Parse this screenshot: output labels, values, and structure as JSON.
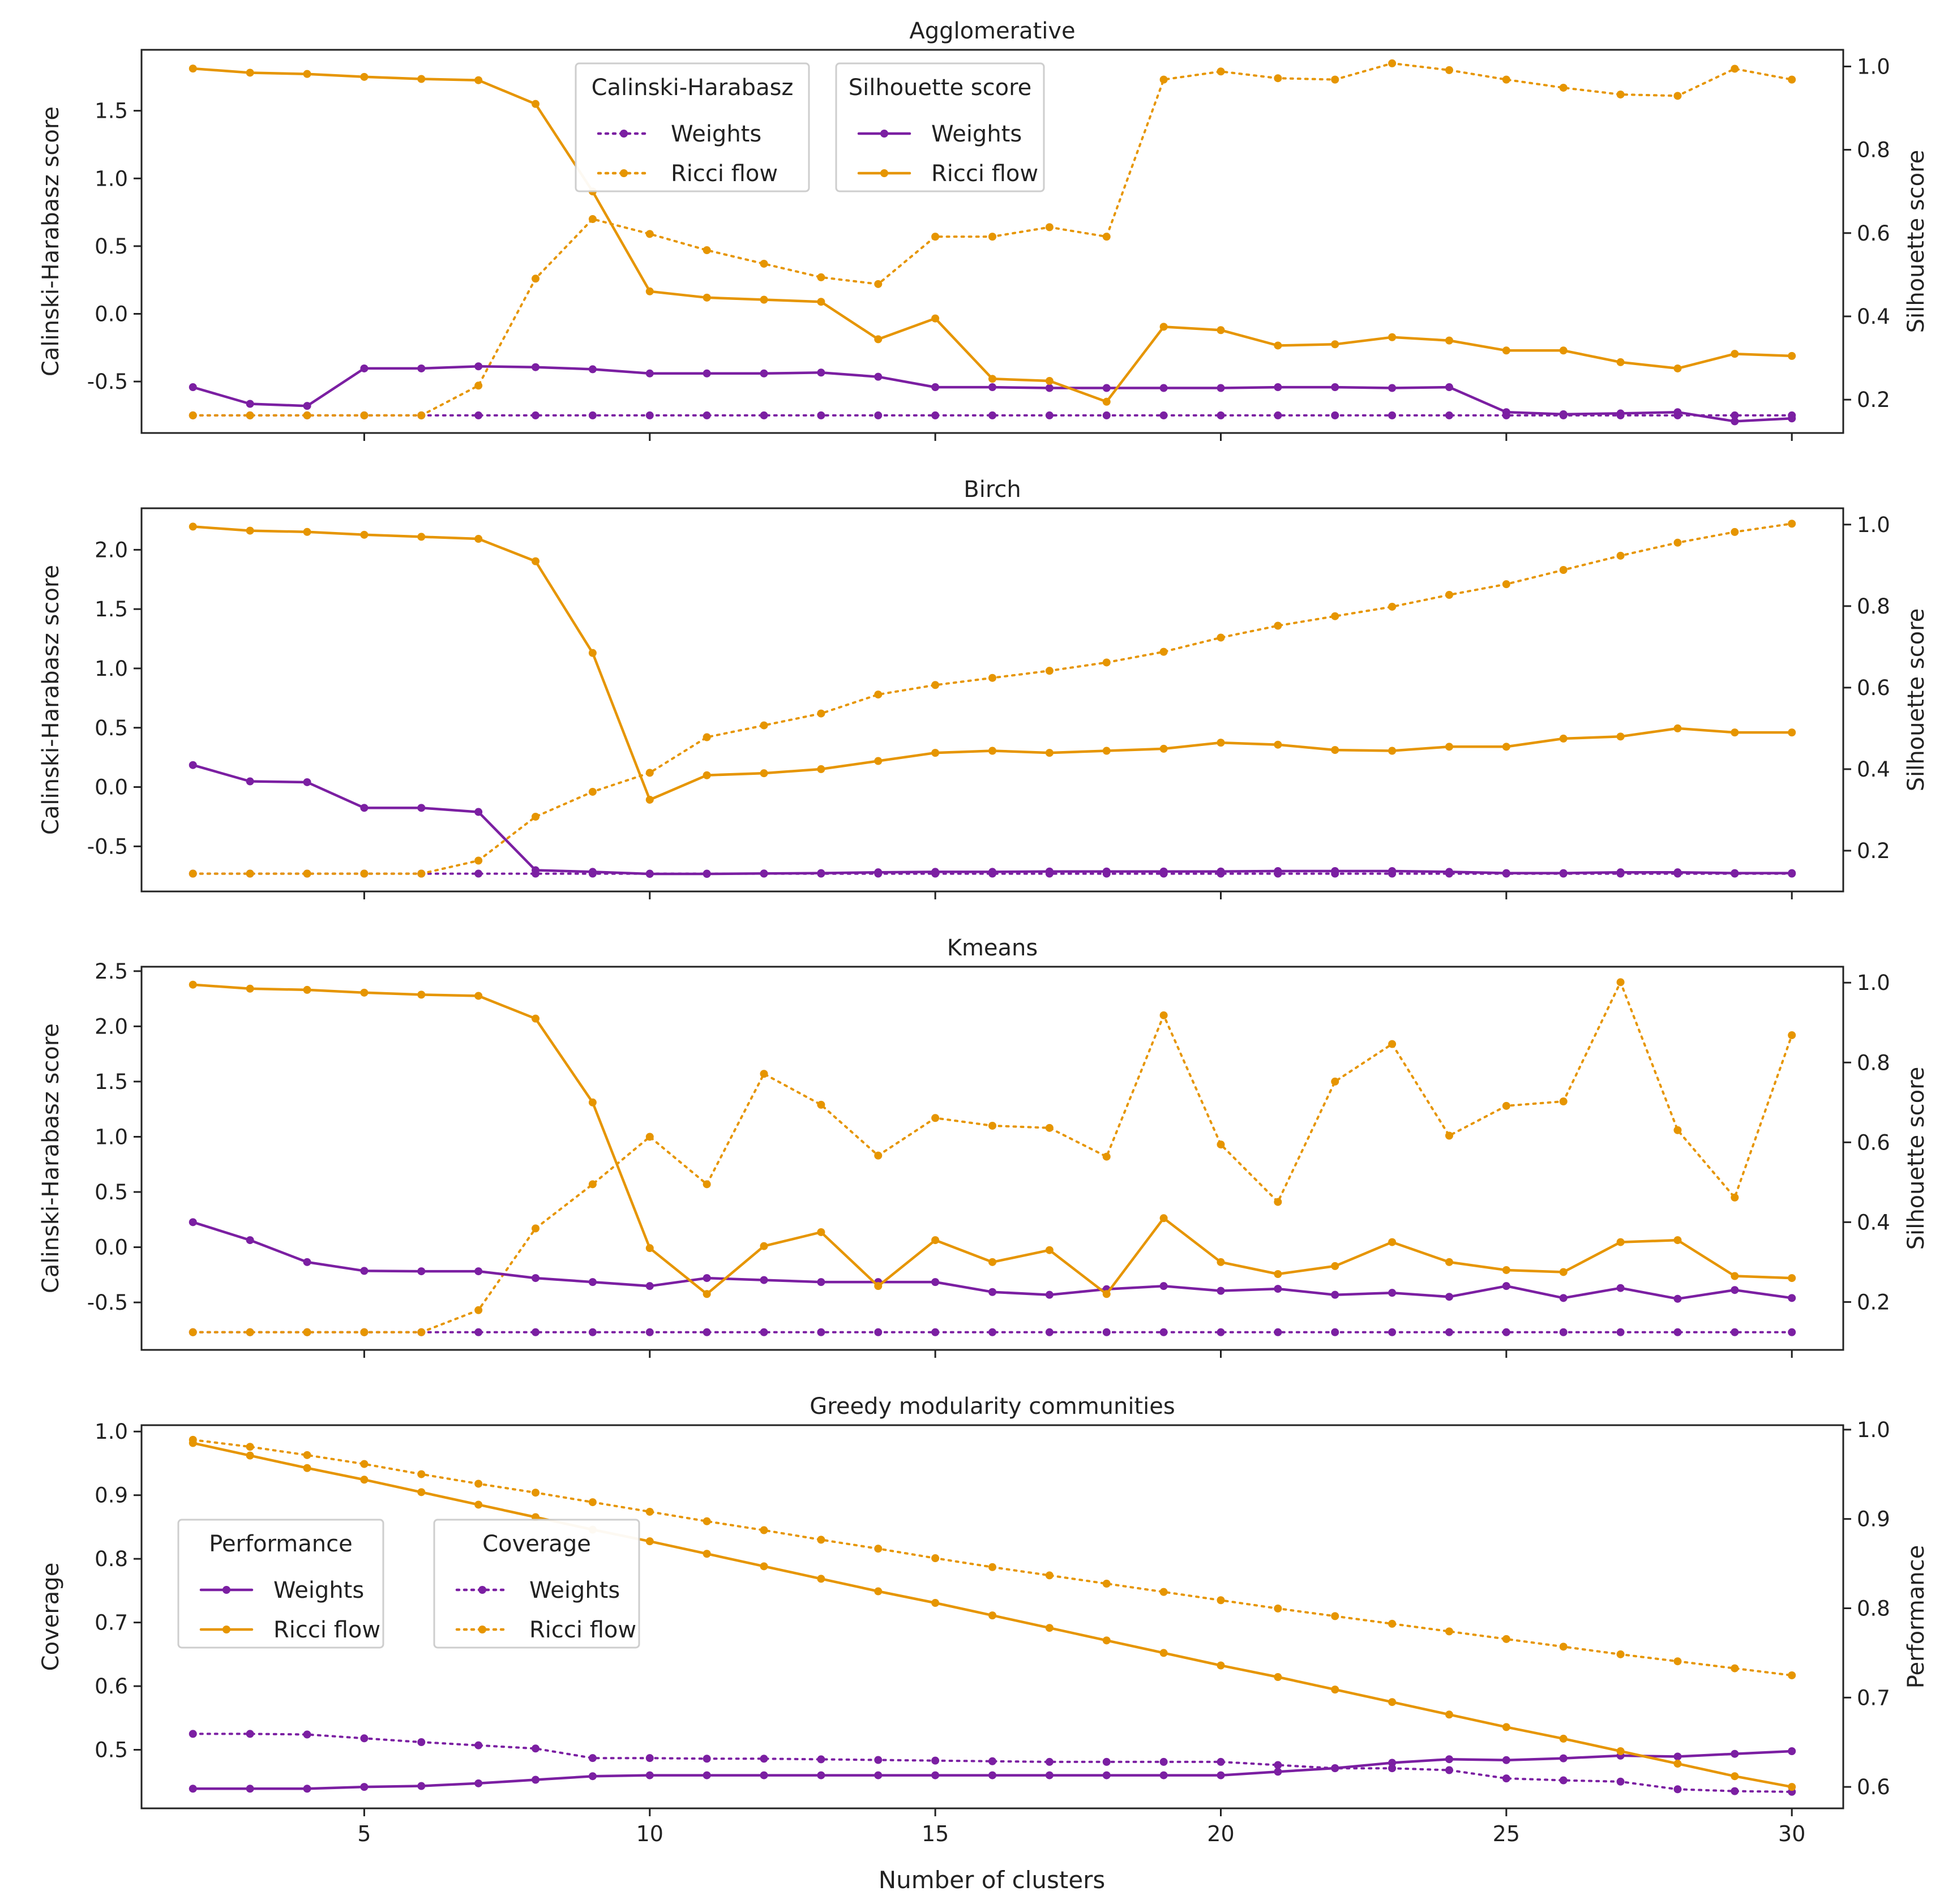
{
  "figure": {
    "xlabel": "Number of clusters"
  },
  "colors": {
    "weights": "#7B1FA2",
    "ricci": "#E69500",
    "axis": "#222222"
  },
  "chart_data": [
    {
      "type": "line",
      "title": "Agglomerative",
      "xlabel": "",
      "ylabel_left": "Calinski-Harabasz score",
      "ylabel_right": "Silhouette score",
      "x": [
        2,
        3,
        4,
        5,
        6,
        7,
        8,
        9,
        10,
        11,
        12,
        13,
        14,
        15,
        16,
        17,
        18,
        19,
        20,
        21,
        22,
        23,
        24,
        25,
        26,
        27,
        28,
        29,
        30
      ],
      "xlim": [
        1.1,
        30.9
      ],
      "xticks": [
        5,
        10,
        15,
        20,
        25,
        30
      ],
      "ylim_left": [
        -0.88,
        1.95
      ],
      "yticks_left": [
        -0.5,
        0.0,
        0.5,
        1.0,
        1.5
      ],
      "ylim_right": [
        0.12,
        1.04
      ],
      "yticks_right": [
        0.2,
        0.4,
        0.6,
        0.8,
        1.0
      ],
      "series": [
        {
          "name": "Weights",
          "group": "Calinski-Harabasz",
          "axis": "left",
          "style": "dotted",
          "color": "weights",
          "values": [
            -0.75,
            -0.75,
            -0.75,
            -0.75,
            -0.75,
            -0.75,
            -0.75,
            -0.75,
            -0.75,
            -0.75,
            -0.75,
            -0.75,
            -0.75,
            -0.75,
            -0.75,
            -0.75,
            -0.75,
            -0.75,
            -0.75,
            -0.75,
            -0.75,
            -0.75,
            -0.75,
            -0.75,
            -0.75,
            -0.75,
            -0.75,
            -0.75,
            -0.75
          ]
        },
        {
          "name": "Ricci flow",
          "group": "Calinski-Harabasz",
          "axis": "left",
          "style": "dotted",
          "color": "ricci",
          "values": [
            -0.75,
            -0.75,
            -0.75,
            -0.75,
            -0.75,
            -0.53,
            0.26,
            0.7,
            0.59,
            0.47,
            0.37,
            0.27,
            0.22,
            0.57,
            0.57,
            0.64,
            0.57,
            1.73,
            1.79,
            1.74,
            1.73,
            1.85,
            1.8,
            1.73,
            1.67,
            1.62,
            1.61,
            1.81,
            1.73
          ]
        },
        {
          "name": "Weights",
          "group": "Silhouette score",
          "axis": "right",
          "style": "solid",
          "color": "weights",
          "values": [
            0.23,
            0.19,
            0.185,
            0.275,
            0.275,
            0.28,
            0.278,
            0.273,
            0.263,
            0.263,
            0.263,
            0.265,
            0.255,
            0.23,
            0.23,
            0.228,
            0.228,
            0.228,
            0.228,
            0.23,
            0.23,
            0.228,
            0.23,
            0.17,
            0.165,
            0.167,
            0.17,
            0.148,
            0.155
          ]
        },
        {
          "name": "Ricci flow",
          "group": "Silhouette score",
          "axis": "right",
          "style": "solid",
          "color": "ricci",
          "values": [
            0.995,
            0.985,
            0.982,
            0.975,
            0.97,
            0.967,
            0.91,
            0.7,
            0.46,
            0.445,
            0.44,
            0.435,
            0.345,
            0.395,
            0.25,
            0.245,
            0.195,
            0.375,
            0.367,
            0.33,
            0.333,
            0.35,
            0.342,
            0.318,
            0.318,
            0.29,
            0.275,
            0.31,
            0.305
          ]
        }
      ],
      "legends": [
        {
          "title": "Calinski-Harabasz",
          "position": "top-center",
          "items": [
            {
              "label": "Weights",
              "color": "weights",
              "style": "dotted"
            },
            {
              "label": "Ricci flow",
              "color": "ricci",
              "style": "dotted"
            }
          ]
        },
        {
          "title": "Silhouette score",
          "position": "top-center",
          "items": [
            {
              "label": "Weights",
              "color": "weights",
              "style": "solid"
            },
            {
              "label": "Ricci flow",
              "color": "ricci",
              "style": "solid"
            }
          ]
        }
      ]
    },
    {
      "type": "line",
      "title": "Birch",
      "xlabel": "",
      "ylabel_left": "Calinski-Harabasz score",
      "ylabel_right": "Silhouette score",
      "x": [
        2,
        3,
        4,
        5,
        6,
        7,
        8,
        9,
        10,
        11,
        12,
        13,
        14,
        15,
        16,
        17,
        18,
        19,
        20,
        21,
        22,
        23,
        24,
        25,
        26,
        27,
        28,
        29,
        30
      ],
      "xlim": [
        1.1,
        30.9
      ],
      "xticks": [
        5,
        10,
        15,
        20,
        25,
        30
      ],
      "ylim_left": [
        -0.88,
        2.35
      ],
      "yticks_left": [
        -0.5,
        0.0,
        0.5,
        1.0,
        1.5,
        2.0
      ],
      "ylim_right": [
        0.1,
        1.04
      ],
      "yticks_right": [
        0.2,
        0.4,
        0.6,
        0.8,
        1.0
      ],
      "series": [
        {
          "name": "Weights",
          "group": "Calinski-Harabasz",
          "axis": "left",
          "style": "dotted",
          "color": "weights",
          "values": [
            -0.73,
            -0.73,
            -0.73,
            -0.73,
            -0.73,
            -0.73,
            -0.73,
            -0.73,
            -0.73,
            -0.73,
            -0.73,
            -0.73,
            -0.73,
            -0.73,
            -0.73,
            -0.73,
            -0.73,
            -0.73,
            -0.73,
            -0.73,
            -0.73,
            -0.73,
            -0.73,
            -0.73,
            -0.73,
            -0.73,
            -0.73,
            -0.73,
            -0.73
          ]
        },
        {
          "name": "Ricci flow",
          "group": "Calinski-Harabasz",
          "axis": "left",
          "style": "dotted",
          "color": "ricci",
          "values": [
            -0.73,
            -0.73,
            -0.73,
            -0.73,
            -0.73,
            -0.62,
            -0.25,
            -0.04,
            0.12,
            0.42,
            0.52,
            0.62,
            0.78,
            0.86,
            0.92,
            0.98,
            1.05,
            1.14,
            1.26,
            1.36,
            1.44,
            1.52,
            1.62,
            1.71,
            1.83,
            1.95,
            2.06,
            2.15,
            2.22
          ]
        },
        {
          "name": "Weights",
          "group": "Silhouette score",
          "axis": "right",
          "style": "solid",
          "color": "weights",
          "values": [
            0.41,
            0.37,
            0.368,
            0.305,
            0.305,
            0.295,
            0.152,
            0.148,
            0.143,
            0.143,
            0.144,
            0.145,
            0.147,
            0.148,
            0.148,
            0.149,
            0.149,
            0.149,
            0.149,
            0.15,
            0.15,
            0.15,
            0.148,
            0.145,
            0.145,
            0.147,
            0.147,
            0.145,
            0.145
          ]
        },
        {
          "name": "Ricci flow",
          "group": "Silhouette score",
          "axis": "right",
          "style": "solid",
          "color": "ricci",
          "values": [
            0.995,
            0.985,
            0.982,
            0.975,
            0.97,
            0.965,
            0.91,
            0.685,
            0.325,
            0.385,
            0.39,
            0.4,
            0.42,
            0.44,
            0.445,
            0.44,
            0.445,
            0.45,
            0.465,
            0.46,
            0.447,
            0.445,
            0.455,
            0.455,
            0.475,
            0.48,
            0.5,
            0.49,
            0.49
          ]
        }
      ]
    },
    {
      "type": "line",
      "title": "Kmeans",
      "xlabel": "",
      "ylabel_left": "Calinski-Harabasz score",
      "ylabel_right": "Silhouette score",
      "x": [
        2,
        3,
        4,
        5,
        6,
        7,
        8,
        9,
        10,
        11,
        12,
        13,
        14,
        15,
        16,
        17,
        18,
        19,
        20,
        21,
        22,
        23,
        24,
        25,
        26,
        27,
        28,
        29,
        30
      ],
      "xlim": [
        1.1,
        30.9
      ],
      "xticks": [
        5,
        10,
        15,
        20,
        25,
        30
      ],
      "ylim_left": [
        -0.93,
        2.54
      ],
      "yticks_left": [
        -0.5,
        0.0,
        0.5,
        1.0,
        1.5,
        2.0,
        2.5
      ],
      "ylim_right": [
        0.08,
        1.04
      ],
      "yticks_right": [
        0.2,
        0.4,
        0.6,
        0.8,
        1.0
      ],
      "series": [
        {
          "name": "Weights",
          "group": "Calinski-Harabasz",
          "axis": "left",
          "style": "dotted",
          "color": "weights",
          "values": [
            -0.77,
            -0.77,
            -0.77,
            -0.77,
            -0.77,
            -0.77,
            -0.77,
            -0.77,
            -0.77,
            -0.77,
            -0.77,
            -0.77,
            -0.77,
            -0.77,
            -0.77,
            -0.77,
            -0.77,
            -0.77,
            -0.77,
            -0.77,
            -0.77,
            -0.77,
            -0.77,
            -0.77,
            -0.77,
            -0.77,
            -0.77,
            -0.77,
            -0.77
          ]
        },
        {
          "name": "Ricci flow",
          "group": "Calinski-Harabasz",
          "axis": "left",
          "style": "dotted",
          "color": "ricci",
          "values": [
            -0.77,
            -0.77,
            -0.77,
            -0.77,
            -0.77,
            -0.57,
            0.17,
            0.57,
            1.0,
            0.57,
            1.57,
            1.29,
            0.83,
            1.17,
            1.1,
            1.08,
            0.82,
            2.1,
            0.93,
            0.41,
            1.5,
            1.84,
            1.01,
            1.28,
            1.32,
            2.4,
            1.06,
            0.45,
            1.92
          ]
        },
        {
          "name": "Weights",
          "group": "Silhouette score",
          "axis": "right",
          "style": "solid",
          "color": "weights",
          "values": [
            0.4,
            0.355,
            0.3,
            0.278,
            0.277,
            0.277,
            0.26,
            0.25,
            0.24,
            0.26,
            0.255,
            0.25,
            0.25,
            0.25,
            0.225,
            0.218,
            0.232,
            0.24,
            0.228,
            0.233,
            0.218,
            0.223,
            0.213,
            0.24,
            0.21,
            0.235,
            0.208,
            0.23,
            0.21
          ]
        },
        {
          "name": "Ricci flow",
          "group": "Silhouette score",
          "axis": "right",
          "style": "solid",
          "color": "ricci",
          "values": [
            0.995,
            0.985,
            0.982,
            0.975,
            0.97,
            0.967,
            0.91,
            0.7,
            0.335,
            0.22,
            0.34,
            0.375,
            0.24,
            0.355,
            0.3,
            0.33,
            0.22,
            0.41,
            0.3,
            0.27,
            0.29,
            0.35,
            0.3,
            0.28,
            0.275,
            0.35,
            0.355,
            0.265,
            0.26
          ]
        }
      ]
    },
    {
      "type": "line",
      "title": "Greedy modularity communities",
      "xlabel": "Number of clusters",
      "ylabel_left": "Coverage",
      "ylabel_right": "Performance",
      "x": [
        2,
        3,
        4,
        5,
        6,
        7,
        8,
        9,
        10,
        11,
        12,
        13,
        14,
        15,
        16,
        17,
        18,
        19,
        20,
        21,
        22,
        23,
        24,
        25,
        26,
        27,
        28,
        29,
        30
      ],
      "xlim": [
        1.1,
        30.9
      ],
      "xticks": [
        5,
        10,
        15,
        20,
        25,
        30
      ],
      "ylim_left": [
        0.408,
        1.01
      ],
      "yticks_left": [
        0.5,
        0.6,
        0.7,
        0.8,
        0.9,
        1.0
      ],
      "ylim_right": [
        0.576,
        1.005
      ],
      "yticks_right": [
        0.6,
        0.7,
        0.8,
        0.9,
        1.0
      ],
      "series": [
        {
          "name": "Weights",
          "group": "Coverage",
          "axis": "left",
          "style": "dotted",
          "color": "weights",
          "values": [
            0.525,
            0.525,
            0.524,
            0.518,
            0.512,
            0.507,
            0.502,
            0.487,
            0.487,
            0.486,
            0.486,
            0.485,
            0.484,
            0.483,
            0.482,
            0.481,
            0.481,
            0.481,
            0.481,
            0.476,
            0.471,
            0.471,
            0.468,
            0.455,
            0.452,
            0.45,
            0.438,
            0.435,
            0.434
          ]
        },
        {
          "name": "Ricci flow",
          "group": "Coverage",
          "axis": "left",
          "style": "dotted",
          "color": "ricci",
          "values": [
            0.987,
            0.976,
            0.963,
            0.949,
            0.933,
            0.918,
            0.904,
            0.889,
            0.874,
            0.859,
            0.845,
            0.83,
            0.816,
            0.801,
            0.787,
            0.774,
            0.761,
            0.748,
            0.735,
            0.722,
            0.71,
            0.698,
            0.686,
            0.674,
            0.662,
            0.65,
            0.639,
            0.628,
            0.617
          ]
        },
        {
          "name": "Weights",
          "group": "Performance",
          "axis": "right",
          "style": "solid",
          "color": "weights",
          "values": [
            0.598,
            0.598,
            0.598,
            0.6,
            0.601,
            0.604,
            0.608,
            0.612,
            0.613,
            0.613,
            0.613,
            0.613,
            0.613,
            0.613,
            0.613,
            0.613,
            0.613,
            0.613,
            0.613,
            0.617,
            0.621,
            0.627,
            0.631,
            0.63,
            0.632,
            0.635,
            0.634,
            0.637,
            0.64
          ]
        },
        {
          "name": "Ricci flow",
          "group": "Performance",
          "axis": "right",
          "style": "solid",
          "color": "ricci",
          "values": [
            0.985,
            0.971,
            0.957,
            0.944,
            0.93,
            0.916,
            0.902,
            0.888,
            0.875,
            0.861,
            0.847,
            0.833,
            0.819,
            0.806,
            0.792,
            0.778,
            0.764,
            0.75,
            0.736,
            0.723,
            0.709,
            0.695,
            0.681,
            0.667,
            0.654,
            0.64,
            0.626,
            0.612,
            0.6
          ]
        }
      ],
      "legends": [
        {
          "title": "Performance",
          "position": "center-left",
          "items": [
            {
              "label": "Weights",
              "color": "weights",
              "style": "solid"
            },
            {
              "label": "Ricci flow",
              "color": "ricci",
              "style": "solid"
            }
          ]
        },
        {
          "title": "Coverage",
          "position": "center-left",
          "items": [
            {
              "label": "Weights",
              "color": "weights",
              "style": "dotted"
            },
            {
              "label": "Ricci flow",
              "color": "ricci",
              "style": "dotted"
            }
          ]
        }
      ]
    }
  ]
}
